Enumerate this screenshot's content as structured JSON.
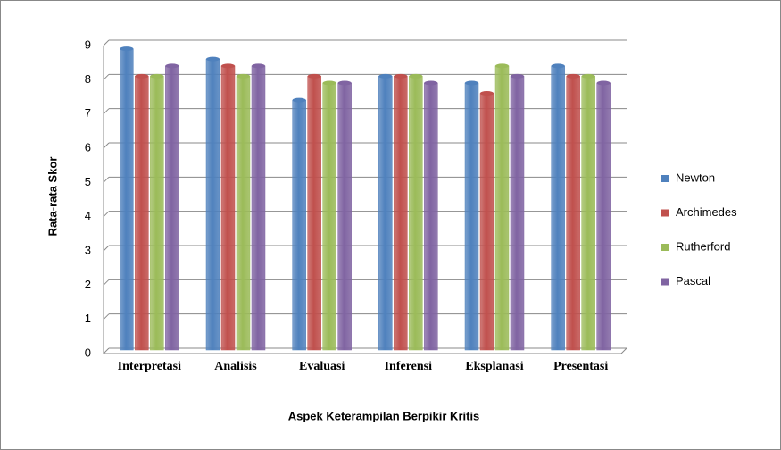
{
  "chart_data": {
    "type": "bar",
    "x_label": "Aspek Keterampilan Berpikir Kritis",
    "y_label": "Rata-rata Skor",
    "categories": [
      "Interpretasi",
      "Analisis",
      "Evaluasi",
      "Inferensi",
      "Eksplanasi",
      "Presentasi"
    ],
    "series": [
      {
        "name": "Newton",
        "color": "#4f81bd",
        "values": [
          8.8,
          8.5,
          7.3,
          8.0,
          7.8,
          8.3
        ]
      },
      {
        "name": "Archimedes",
        "color": "#c0504d",
        "values": [
          8.0,
          8.3,
          8.0,
          8.0,
          7.5,
          8.0
        ]
      },
      {
        "name": "Rutherford",
        "color": "#9bbb59",
        "values": [
          8.0,
          8.0,
          7.8,
          8.0,
          8.3,
          8.0
        ]
      },
      {
        "name": "Pascal",
        "color": "#8064a2",
        "values": [
          8.3,
          8.3,
          7.8,
          7.8,
          8.0,
          7.8
        ]
      }
    ],
    "ylim": [
      0,
      9
    ],
    "yticks": [
      0,
      1,
      2,
      3,
      4,
      5,
      6,
      7,
      8,
      9
    ],
    "grid": true,
    "legend": "right"
  }
}
